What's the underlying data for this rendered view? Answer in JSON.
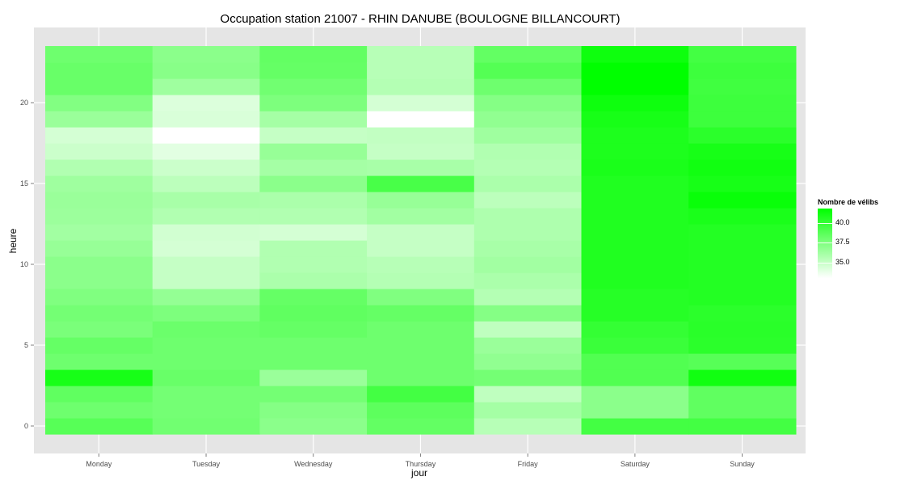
{
  "chart_data": {
    "type": "heatmap",
    "title": "Occupation station 21007 - RHIN DANUBE (BOULOGNE BILLANCOURT)",
    "xlabel": "jour",
    "ylabel": "heure",
    "categories": [
      "Monday",
      "Tuesday",
      "Wednesday",
      "Thursday",
      "Friday",
      "Saturday",
      "Sunday"
    ],
    "y_ticks": [
      0,
      5,
      10,
      15,
      20
    ],
    "hours": [
      0,
      1,
      2,
      3,
      4,
      5,
      6,
      7,
      8,
      9,
      10,
      11,
      12,
      13,
      14,
      15,
      16,
      17,
      18,
      19,
      20,
      21,
      22,
      23
    ],
    "legend_title": "Nombre de vélibs",
    "legend_ticks": [
      35.0,
      37.5,
      40.0
    ],
    "legend_tick_labels": [
      "35.0",
      "37.5",
      "40.0"
    ],
    "fill_range": [
      33.0,
      41.8
    ],
    "values": [
      [
        38.8,
        38.0,
        38.5,
        41.0,
        38.0,
        38.3,
        37.6,
        37.8,
        37.4,
        37.0,
        37.0,
        36.6,
        36.2,
        36.4,
        36.5,
        36.3,
        35.7,
        34.8,
        34.5,
        36.5,
        37.3,
        38.2,
        38.2,
        38.0
      ],
      [
        37.9,
        37.8,
        37.8,
        38.2,
        38.0,
        38.0,
        38.1,
        37.5,
        36.7,
        35.0,
        35.0,
        34.5,
        34.6,
        35.7,
        36.0,
        35.3,
        34.8,
        34.0,
        33.0,
        34.3,
        34.2,
        36.3,
        37.1,
        37.0
      ],
      [
        37.0,
        37.2,
        37.8,
        36.5,
        38.0,
        38.0,
        38.3,
        38.5,
        38.3,
        35.9,
        35.7,
        35.7,
        34.5,
        35.7,
        35.9,
        37.0,
        36.1,
        36.6,
        35.0,
        36.1,
        37.5,
        37.9,
        38.3,
        38.4
      ],
      [
        38.4,
        38.6,
        39.5,
        38.0,
        38.0,
        38.0,
        38.0,
        38.3,
        37.4,
        35.6,
        35.5,
        35.0,
        35.0,
        36.2,
        36.6,
        39.3,
        36.0,
        35.0,
        35.1,
        33.0,
        34.5,
        35.6,
        35.5,
        35.5
      ],
      [
        35.5,
        36.1,
        35.2,
        37.8,
        36.8,
        36.5,
        35.2,
        37.2,
        35.6,
        35.9,
        36.2,
        36.0,
        35.8,
        35.8,
        35.3,
        35.9,
        35.6,
        35.7,
        36.3,
        36.8,
        37.2,
        38.0,
        38.9,
        38.4
      ],
      [
        39.5,
        37.0,
        37.0,
        39.0,
        39.0,
        39.8,
        40.0,
        40.5,
        40.5,
        40.7,
        40.7,
        40.7,
        40.7,
        40.7,
        40.7,
        40.7,
        40.9,
        40.8,
        40.8,
        41.0,
        41.3,
        41.8,
        41.8,
        41.3
      ],
      [
        39.5,
        38.5,
        38.5,
        41.2,
        38.8,
        40.3,
        40.4,
        40.3,
        40.6,
        40.6,
        40.6,
        40.6,
        40.6,
        40.9,
        41.5,
        41.0,
        41.2,
        41.0,
        40.3,
        39.7,
        39.7,
        39.6,
        39.7,
        39.5
      ]
    ]
  }
}
